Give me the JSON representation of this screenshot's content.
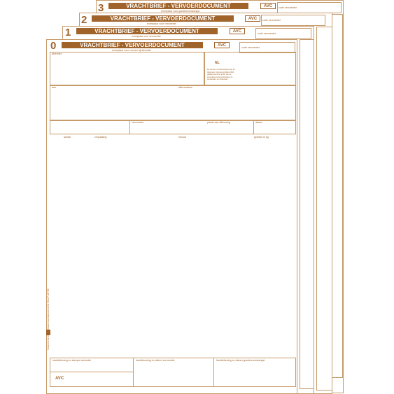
{
  "form_title": "VRACHTBRIEF - VERVOERDOCUMENT",
  "avc_badge": "AVC",
  "sheets": {
    "s3": {
      "number": "3",
      "subtitle": "exemplaar voor goederenontvangst",
      "carrier_code_label": "code vervoerder"
    },
    "s2": {
      "number": "2",
      "subtitle": "exemplaar voor vervoerder",
      "carrier_code_label": "code vervoerder"
    },
    "s1": {
      "number": "1",
      "subtitle": "exemplaar voor vervoerder",
      "carrier_code_label": "code vervoerder"
    },
    "s0": {
      "number": "0",
      "subtitle": "exemplaar voor vervoer bij afzender",
      "carrier_code_label": "code vervoerder"
    }
  },
  "front": {
    "sender_label": "afzender",
    "country_code": "NL",
    "conditions_text": [
      "Dit vervoer is onderworpen aan de",
      "Algemene Vervoercondities 2002",
      "gedeponeerd ter griffie van de",
      "arrondissementsrechtbanken te",
      "Amsterdam en Rotterdam"
    ],
    "consignee_label": "aan",
    "place_of_delivery_label": "afleveradres",
    "carrier_label": "vervoerder",
    "place_of_loading_label": "plaats van aflevering",
    "date_label": "datum",
    "items_header": {
      "col1": "aantal",
      "col2": "verpakking",
      "col3": "inhoud",
      "col4": "gewicht in kg"
    },
    "footer": {
      "signature_sender": "handtekening en stempel afzender",
      "signature_carrier": "handtekening en datum vervoerder",
      "signature_consignee": "handtekening en datum goederenontvangst",
      "footer_avc": "AVC"
    },
    "side_print": "Hukvorm 01-15  Nederland  www.hukvorm.nl  NL 501.27.18.765",
    "side_logo": "DB"
  }
}
